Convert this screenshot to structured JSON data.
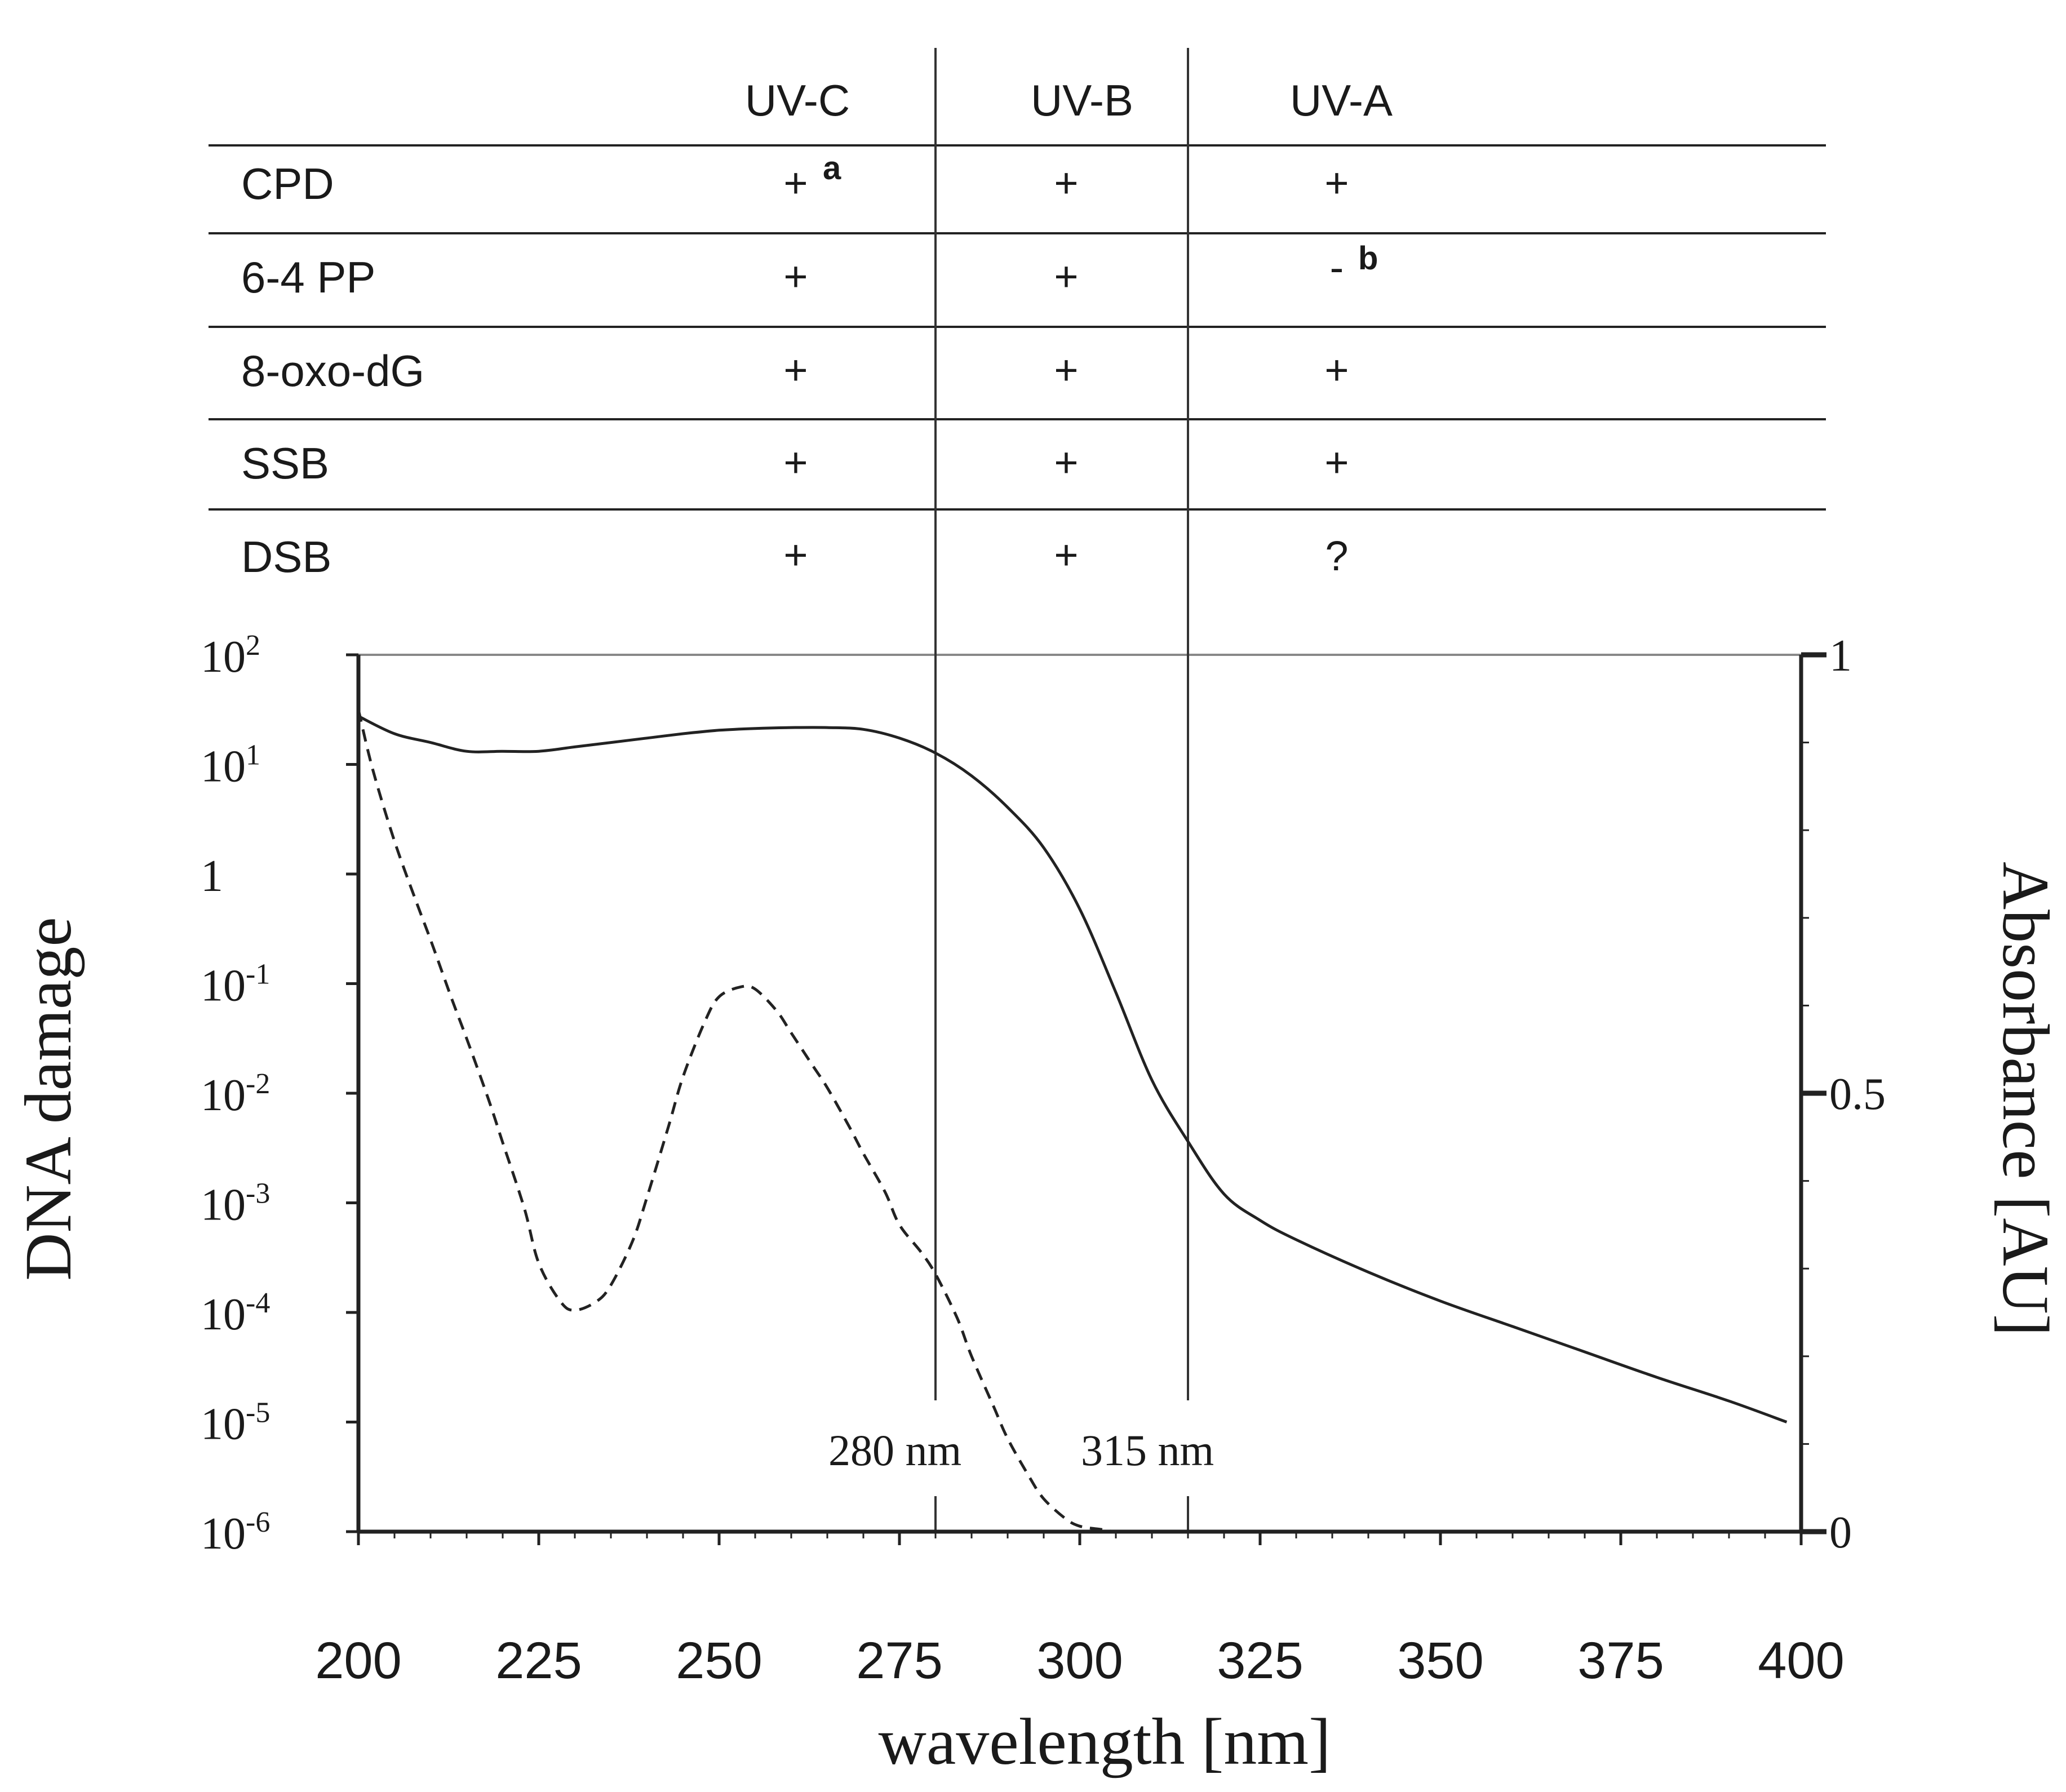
{
  "table": {
    "columns": [
      "UV-C",
      "UV-B",
      "UV-A"
    ],
    "rows": [
      {
        "label": "CPD",
        "cells": [
          {
            "mark": "+",
            "sup": "a"
          },
          {
            "mark": "+",
            "sup": ""
          },
          {
            "mark": "+",
            "sup": ""
          }
        ]
      },
      {
        "label": "6-4 PP",
        "cells": [
          {
            "mark": "+",
            "sup": ""
          },
          {
            "mark": "+",
            "sup": ""
          },
          {
            "mark": "-",
            "sup": "b"
          }
        ]
      },
      {
        "label": "8-oxo-dG",
        "cells": [
          {
            "mark": "+",
            "sup": ""
          },
          {
            "mark": "+",
            "sup": ""
          },
          {
            "mark": "+",
            "sup": ""
          }
        ]
      },
      {
        "label": "SSB",
        "cells": [
          {
            "mark": "+",
            "sup": ""
          },
          {
            "mark": "+",
            "sup": ""
          },
          {
            "mark": "+",
            "sup": ""
          }
        ]
      },
      {
        "label": "DSB",
        "cells": [
          {
            "mark": "+",
            "sup": ""
          },
          {
            "mark": "+",
            "sup": ""
          },
          {
            "mark": "?",
            "sup": ""
          }
        ]
      }
    ]
  },
  "chart_data": {
    "type": "line",
    "xlabel": "wavelength [nm]",
    "ylabel": "DNA damage",
    "y2label": "Absorbance [AU]",
    "xlim": [
      200,
      400
    ],
    "xticks": [
      "200",
      "225",
      "250",
      "275",
      "300",
      "325",
      "350",
      "375",
      "400"
    ],
    "xtick_values": [
      200,
      225,
      250,
      275,
      300,
      325,
      350,
      375,
      400
    ],
    "y_scale": "log",
    "ylim_log10": [
      -6,
      2
    ],
    "yticks": [
      {
        "base": "10",
        "exp": "2"
      },
      {
        "base": "10",
        "exp": "1"
      },
      {
        "base": "1",
        "exp": ""
      },
      {
        "base": "10",
        "exp": "-1"
      },
      {
        "base": "10",
        "exp": "-2"
      },
      {
        "base": "10",
        "exp": "-3"
      },
      {
        "base": "10",
        "exp": "-4"
      },
      {
        "base": "10",
        "exp": "-5"
      },
      {
        "base": "10",
        "exp": "-6"
      }
    ],
    "ytick_log10": [
      2,
      1,
      0,
      -1,
      -2,
      -3,
      -4,
      -5,
      -6
    ],
    "y2lim": [
      0,
      1
    ],
    "y2ticks": [
      "1",
      "0.5",
      "0"
    ],
    "y2tick_values": [
      1,
      0.5,
      0
    ],
    "markers": [
      {
        "x": 280,
        "label": "280 nm"
      },
      {
        "x": 315,
        "label": "315 nm"
      }
    ],
    "series": [
      {
        "style": "solid",
        "axis": "right",
        "x": [
          200,
          205,
          210,
          215,
          220,
          225,
          230,
          235,
          240,
          245,
          250,
          255,
          260,
          265,
          270,
          275,
          280,
          285,
          290,
          295,
          300,
          305,
          310,
          315,
          320,
          325,
          330,
          340,
          350,
          360,
          370,
          380,
          390,
          398
        ],
        "y": [
          0.93,
          0.91,
          0.9,
          0.89,
          0.89,
          0.89,
          0.895,
          0.9,
          0.905,
          0.91,
          0.914,
          0.916,
          0.917,
          0.917,
          0.915,
          0.905,
          0.888,
          0.862,
          0.826,
          0.78,
          0.71,
          0.615,
          0.515,
          0.445,
          0.385,
          0.355,
          0.333,
          0.296,
          0.263,
          0.234,
          0.205,
          0.176,
          0.149,
          0.125
        ]
      },
      {
        "style": "dashed",
        "axis": "left",
        "x": [
          200,
          202,
          205,
          208,
          210,
          213,
          215,
          218,
          220,
          223,
          225,
          228,
          230,
          233,
          235,
          238,
          240,
          243,
          245,
          248,
          250,
          253,
          255,
          258,
          260,
          263,
          265,
          268,
          270,
          273,
          275,
          278,
          280,
          283,
          285,
          288,
          290,
          293,
          295,
          298,
          300,
          303,
          305,
          308
        ],
        "y_log10": [
          1.5,
          0.95,
          0.3,
          -0.25,
          -0.6,
          -1.15,
          -1.5,
          -2.05,
          -2.45,
          -3.05,
          -3.55,
          -3.9,
          -3.98,
          -3.9,
          -3.75,
          -3.35,
          -2.95,
          -2.3,
          -1.85,
          -1.35,
          -1.12,
          -1.03,
          -1.05,
          -1.25,
          -1.45,
          -1.75,
          -1.95,
          -2.3,
          -2.55,
          -2.9,
          -3.2,
          -3.45,
          -3.65,
          -4.05,
          -4.4,
          -4.85,
          -5.15,
          -5.5,
          -5.7,
          -5.88,
          -5.95,
          -5.98,
          -6.0,
          -6.0
        ]
      }
    ]
  }
}
